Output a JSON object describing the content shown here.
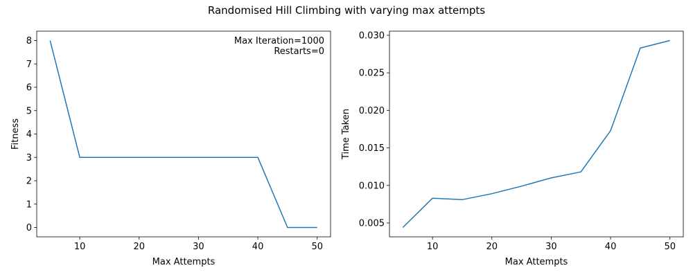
{
  "figure": {
    "suptitle": "Randomised Hill Climbing with varying max attempts"
  },
  "chart_data": [
    {
      "type": "line",
      "title": "",
      "xlabel": "Max Attempts",
      "ylabel": "Fitness",
      "xlim": [
        2.75,
        52.25
      ],
      "ylim": [
        -0.4,
        8.4
      ],
      "xticks": [
        10,
        20,
        30,
        40,
        50
      ],
      "yticks": [
        0,
        1,
        2,
        3,
        4,
        5,
        6,
        7,
        8
      ],
      "grid": false,
      "annotation": [
        "Max Iteration=1000",
        "Restarts=0"
      ],
      "annotation_placement": "top-right",
      "series": [
        {
          "color": "#1f77b4",
          "x": [
            5,
            10,
            15,
            20,
            25,
            30,
            35,
            40,
            45,
            50
          ],
          "y": [
            8,
            3,
            3,
            3,
            3,
            3,
            3,
            3,
            0,
            0
          ]
        }
      ]
    },
    {
      "type": "line",
      "title": "",
      "xlabel": "Max Attempts",
      "ylabel": "Time Taken",
      "xlim": [
        2.75,
        52.25
      ],
      "ylim": [
        0.00315,
        0.03055
      ],
      "xticks": [
        10,
        20,
        30,
        40,
        50
      ],
      "yticks": [
        0.005,
        0.01,
        0.015,
        0.02,
        0.025,
        0.03
      ],
      "ytick_labels": [
        "0.005",
        "0.010",
        "0.015",
        "0.020",
        "0.025",
        "0.030"
      ],
      "grid": false,
      "series": [
        {
          "color": "#1f77b4",
          "x": [
            5,
            10,
            15,
            20,
            25,
            30,
            35,
            40,
            45,
            50
          ],
          "y": [
            0.0044,
            0.0083,
            0.0081,
            0.0089,
            0.0099,
            0.011,
            0.0118,
            0.0173,
            0.0283,
            0.0293
          ]
        }
      ]
    }
  ]
}
